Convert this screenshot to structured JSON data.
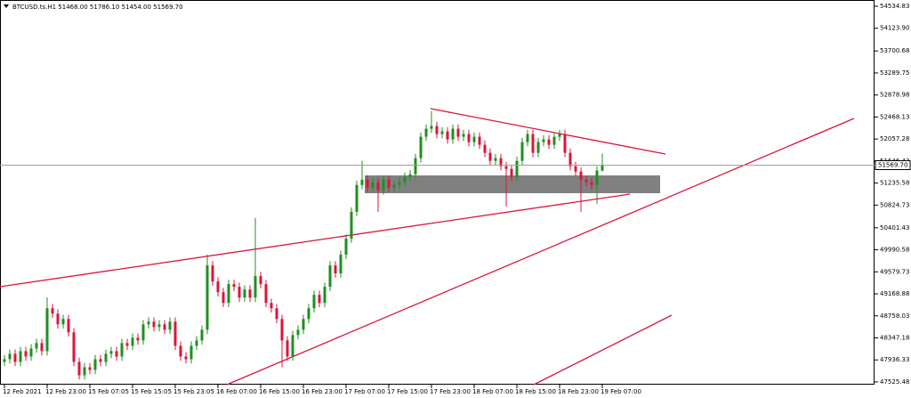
{
  "chart_data": {
    "type": "candlestick",
    "header": "BTCUSD.ts.H1  51468.00 51786.10 51454.00 51569.70",
    "categories": [
      "12 Feb 2021",
      null,
      null,
      null,
      null,
      null,
      null,
      null,
      "12 Feb 23:00",
      null,
      null,
      null,
      null,
      null,
      null,
      null,
      "15 Feb 07:05",
      null,
      null,
      null,
      null,
      null,
      null,
      null,
      "15 Feb 15:05",
      null,
      null,
      null,
      null,
      null,
      null,
      null,
      "15 Feb 23:05",
      null,
      null,
      null,
      null,
      null,
      null,
      null,
      "16 Feb 07:00",
      null,
      null,
      null,
      null,
      null,
      null,
      null,
      "16 Feb 15:00",
      null,
      null,
      null,
      null,
      null,
      null,
      null,
      "16 Feb 23:00",
      null,
      null,
      null,
      null,
      null,
      null,
      null,
      "17 Feb 07:00",
      null,
      null,
      null,
      null,
      null,
      null,
      null,
      "17 Feb 15:00",
      null,
      null,
      null,
      null,
      null,
      null,
      null,
      "17 Feb 23:00",
      null,
      null,
      null,
      null,
      null,
      null,
      null,
      "18 Feb 07:00",
      null,
      null,
      null,
      null,
      null,
      null,
      null,
      "18 Feb 15:00",
      null,
      null,
      null,
      null,
      null,
      null,
      null,
      "18 Feb 23:00",
      null,
      null,
      null,
      null,
      null,
      null,
      null,
      "19 Feb 07:00"
    ],
    "open": [
      47900,
      47950,
      48050,
      47900,
      48100,
      48000,
      48150,
      48250,
      48100,
      48900,
      48800,
      48600,
      48700,
      48450,
      47900,
      47650,
      47800,
      47750,
      47950,
      47900,
      48050,
      48100,
      48000,
      48250,
      48200,
      48350,
      48300,
      48600,
      48650,
      48550,
      48600,
      48500,
      48650,
      48200,
      48000,
      47950,
      48200,
      48300,
      48500,
      49700,
      49400,
      49200,
      49000,
      49350,
      49300,
      49100,
      49250,
      49100,
      49500,
      49350,
      49000,
      48900,
      48700,
      48300,
      48000,
      48400,
      48500,
      48700,
      48900,
      49150,
      49000,
      49300,
      49700,
      49550,
      49900,
      50200,
      50700,
      51200,
      51300,
      51150,
      51250,
      51100,
      51300,
      51150,
      51200,
      51250,
      51350,
      51400,
      51700,
      52100,
      52250,
      52300,
      52150,
      52200,
      52050,
      52250,
      52100,
      52150,
      52000,
      52100,
      51950,
      51800,
      51650,
      51700,
      51550,
      51500,
      51350,
      51650,
      52000,
      52150,
      51800,
      52000,
      52050,
      51950,
      52100,
      52150,
      51800,
      51550,
      51450,
      51300,
      51250,
      51200,
      51468
    ],
    "high": [
      48030,
      48130,
      48130,
      48180,
      48180,
      48230,
      48330,
      48330,
      49100,
      48980,
      48880,
      48780,
      48780,
      48530,
      47980,
      47880,
      47880,
      48030,
      48030,
      48130,
      48180,
      48180,
      48330,
      48330,
      48430,
      48430,
      48680,
      48730,
      48730,
      48680,
      48680,
      48730,
      48730,
      48280,
      48080,
      48280,
      48380,
      48580,
      49900,
      49780,
      49480,
      49280,
      49430,
      49430,
      49380,
      49330,
      49330,
      50585,
      49580,
      49430,
      49080,
      48980,
      48780,
      48380,
      48480,
      48580,
      48780,
      48980,
      49230,
      49230,
      49380,
      49780,
      49780,
      49980,
      50280,
      50780,
      51280,
      51650,
      51380,
      51330,
      51330,
      51380,
      51380,
      51280,
      51330,
      51430,
      51480,
      51780,
      52180,
      52330,
      52580,
      52380,
      52280,
      52280,
      52330,
      52330,
      52230,
      52230,
      52180,
      52180,
      52030,
      51880,
      51780,
      51780,
      51630,
      51580,
      51730,
      52080,
      52230,
      52230,
      52080,
      52130,
      52130,
      52180,
      52230,
      52230,
      51880,
      51630,
      51530,
      51380,
      51330,
      51548,
      51786.1
    ],
    "low": [
      47820,
      47870,
      47820,
      47820,
      47920,
      47920,
      48070,
      48020,
      48020,
      48720,
      48520,
      48520,
      48370,
      47820,
      47570,
      47570,
      47670,
      47670,
      47820,
      47820,
      47970,
      47920,
      47920,
      48120,
      48120,
      48220,
      48220,
      48520,
      48470,
      48470,
      48420,
      48420,
      48120,
      47920,
      47870,
      47870,
      48120,
      48220,
      48420,
      49320,
      49120,
      48920,
      48920,
      49220,
      49020,
      49020,
      49020,
      49020,
      49270,
      48920,
      48820,
      48620,
      47800,
      47920,
      47920,
      48320,
      48420,
      48620,
      48820,
      48920,
      48920,
      49220,
      49470,
      49470,
      49820,
      50120,
      50620,
      51120,
      51070,
      51070,
      50700,
      51020,
      51070,
      51070,
      51120,
      51170,
      51270,
      51320,
      51620,
      52020,
      52170,
      52070,
      52070,
      51970,
      51970,
      52020,
      52020,
      51920,
      51920,
      51870,
      51720,
      51570,
      51570,
      51470,
      50800,
      51270,
      51270,
      51570,
      51920,
      51720,
      51720,
      51920,
      51870,
      51870,
      52020,
      51720,
      51470,
      51370,
      50700,
      51170,
      51120,
      50850,
      51454
    ],
    "close": [
      47950,
      48050,
      47900,
      48100,
      48000,
      48150,
      48250,
      48100,
      48900,
      48800,
      48600,
      48700,
      48450,
      47900,
      47650,
      47800,
      47750,
      47950,
      47900,
      48050,
      48100,
      48000,
      48250,
      48200,
      48350,
      48300,
      48600,
      48650,
      48550,
      48600,
      48500,
      48650,
      48200,
      48000,
      47950,
      48200,
      48300,
      48500,
      49700,
      49400,
      49200,
      49000,
      49350,
      49300,
      49100,
      49250,
      49100,
      49500,
      49350,
      49000,
      48900,
      48700,
      48300,
      48000,
      48400,
      48500,
      48700,
      48900,
      49150,
      49000,
      49300,
      49700,
      49550,
      49900,
      50200,
      50700,
      51200,
      51300,
      51150,
      51250,
      51100,
      51300,
      51150,
      51200,
      51250,
      51350,
      51400,
      51700,
      52100,
      52250,
      52300,
      52150,
      52200,
      52050,
      52250,
      52100,
      52150,
      52000,
      52100,
      51950,
      51800,
      51650,
      51700,
      51550,
      51500,
      51350,
      51650,
      52000,
      52150,
      51800,
      52000,
      52050,
      51950,
      52100,
      52150,
      51800,
      51550,
      51450,
      51300,
      51250,
      51200,
      51468,
      51569.7
    ],
    "colors": {
      "up": "#1f8f1f",
      "down": "#dc143c"
    },
    "current_price": {
      "value": 51569.7,
      "label": "51569.70"
    },
    "ylim": [
      47475,
      54651
    ],
    "yticks": [
      54534.83,
      {
        "value": 54123.9,
        "label": "54123.90"
      },
      53700.68,
      53289.75,
      52878.98,
      52468.13,
      52057.28,
      51646.43,
      51235.58,
      50824.73,
      50401.43,
      49990.58,
      49579.73,
      49168.88,
      48758.03,
      48347.18,
      47936.33,
      47525.48
    ]
  }
}
